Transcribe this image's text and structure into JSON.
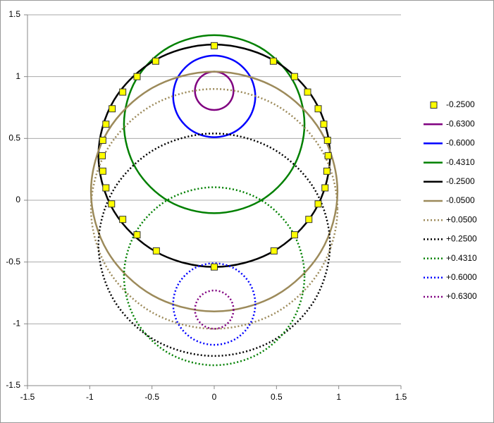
{
  "chart_data": {
    "type": "scatter",
    "xlim": [
      -1.5,
      1.5
    ],
    "ylim": [
      -1.5,
      1.5
    ],
    "xticks": [
      -1.5,
      -1,
      -0.5,
      0,
      0.5,
      1,
      1.5
    ],
    "yticks": [
      -1.5,
      -1,
      -0.5,
      0,
      0.5,
      1,
      1.5
    ],
    "grid": true,
    "legend": "right",
    "series": [
      {
        "name": "-0.2500",
        "color": "#ffff00",
        "mode": "markers",
        "marker": "square",
        "x": [
          0,
          0.475,
          0.645,
          0.75,
          0.835,
          0.88,
          0.91,
          0.915,
          0.905,
          0.89,
          0.835,
          0.76,
          0.645,
          0.48,
          0,
          -0.465,
          -0.62,
          -0.735,
          -0.825,
          -0.87,
          -0.895,
          -0.9,
          -0.895,
          -0.87,
          -0.82,
          -0.735,
          -0.62,
          -0.47
        ],
        "y": [
          1.25,
          1.125,
          1.0,
          0.875,
          0.74,
          0.615,
          0.485,
          0.36,
          0.235,
          0.1,
          -0.03,
          -0.155,
          -0.28,
          -0.41,
          -0.54,
          -0.41,
          -0.28,
          -0.155,
          -0.03,
          0.1,
          0.235,
          0.36,
          0.485,
          0.615,
          0.74,
          0.875,
          1.0,
          1.125
        ]
      },
      {
        "name": "-0.6300",
        "color": "#800080",
        "mode": "line",
        "dash": "solid",
        "x": [
          0.155,
          0.134,
          0.078,
          0,
          -0.078,
          -0.134,
          -0.155,
          -0.134,
          -0.078,
          0,
          0.078,
          0.134
        ],
        "y": [
          0.885,
          0.963,
          1.019,
          1.04,
          1.019,
          0.963,
          0.885,
          0.807,
          0.751,
          0.73,
          0.751,
          0.807
        ]
      },
      {
        "name": "-0.6000",
        "color": "#0000ff",
        "mode": "line",
        "dash": "solid",
        "x": [
          0.33,
          0.286,
          0.165,
          0,
          -0.165,
          -0.286,
          -0.33,
          -0.286,
          -0.165,
          0,
          0.165,
          0.286
        ],
        "y": [
          0.84,
          1.005,
          1.126,
          1.17,
          1.126,
          1.005,
          0.84,
          0.675,
          0.554,
          0.51,
          0.554,
          0.675
        ]
      },
      {
        "name": "-0.4310",
        "color": "#008000",
        "mode": "line",
        "dash": "solid",
        "x": [
          0.725,
          0.628,
          0.363,
          0,
          -0.363,
          -0.628,
          -0.725,
          -0.628,
          -0.363,
          0,
          0.363,
          0.628
        ],
        "y": [
          0.615,
          0.975,
          1.239,
          1.335,
          1.239,
          0.975,
          0.615,
          0.255,
          -0.009,
          -0.105,
          -0.009,
          0.255
        ]
      },
      {
        "name": "-0.2500",
        "color": "#000000",
        "mode": "line",
        "dash": "solid",
        "x": [
          0.93,
          0.805,
          0.465,
          0,
          -0.465,
          -0.805,
          -0.93,
          -0.805,
          -0.465,
          0,
          0.465,
          0.805
        ],
        "y": [
          0.36,
          0.81,
          1.139,
          1.26,
          1.139,
          0.81,
          0.36,
          -0.09,
          -0.419,
          -0.54,
          -0.419,
          -0.09
        ]
      },
      {
        "name": "-0.0500",
        "color": "#9c8a5a",
        "mode": "line",
        "dash": "solid",
        "x": [
          0.99,
          0.857,
          0.495,
          0,
          -0.495,
          -0.857,
          -0.99,
          -0.857,
          -0.495,
          0,
          0.495,
          0.857
        ],
        "y": [
          0.07,
          0.555,
          0.91,
          1.04,
          0.91,
          0.555,
          0.07,
          -0.415,
          -0.77,
          -0.9,
          -0.77,
          -0.415
        ]
      },
      {
        "name": "+0.0500",
        "color": "#9c8a5a",
        "mode": "line",
        "dash": "dotted",
        "x": [
          0.99,
          0.857,
          0.495,
          0,
          -0.495,
          -0.857,
          -0.99,
          -0.857,
          -0.495,
          0,
          0.495,
          0.857
        ],
        "y": [
          -0.07,
          -0.555,
          -0.91,
          -1.04,
          -0.91,
          -0.555,
          -0.07,
          0.415,
          0.77,
          0.9,
          0.77,
          0.415
        ]
      },
      {
        "name": "+0.2500",
        "color": "#000000",
        "mode": "line",
        "dash": "dotted",
        "x": [
          0.93,
          0.805,
          0.465,
          0,
          -0.465,
          -0.805,
          -0.93,
          -0.805,
          -0.465,
          0,
          0.465,
          0.805
        ],
        "y": [
          -0.36,
          -0.81,
          -1.139,
          -1.26,
          -1.139,
          -0.81,
          -0.36,
          0.09,
          0.419,
          0.54,
          0.419,
          0.09
        ]
      },
      {
        "name": "+0.4310",
        "color": "#008000",
        "mode": "line",
        "dash": "dotted",
        "x": [
          0.725,
          0.628,
          0.363,
          0,
          -0.363,
          -0.628,
          -0.725,
          -0.628,
          -0.363,
          0,
          0.363,
          0.628
        ],
        "y": [
          -0.615,
          -0.975,
          -1.239,
          -1.335,
          -1.239,
          -0.975,
          -0.615,
          -0.255,
          0.009,
          0.105,
          0.009,
          -0.255
        ]
      },
      {
        "name": "+0.6000",
        "color": "#0000ff",
        "mode": "line",
        "dash": "dotted",
        "x": [
          0.33,
          0.286,
          0.165,
          0,
          -0.165,
          -0.286,
          -0.33,
          -0.286,
          -0.165,
          0,
          0.165,
          0.286
        ],
        "y": [
          -0.84,
          -1.005,
          -1.126,
          -1.17,
          -1.126,
          -1.005,
          -0.84,
          -0.675,
          -0.554,
          -0.51,
          -0.554,
          -0.675
        ]
      },
      {
        "name": "+0.6300",
        "color": "#800080",
        "mode": "line",
        "dash": "dotted",
        "x": [
          0.155,
          0.134,
          0.078,
          0,
          -0.078,
          -0.134,
          -0.155,
          -0.134,
          -0.078,
          0,
          0.078,
          0.134
        ],
        "y": [
          -0.885,
          -0.963,
          -1.019,
          -1.04,
          -1.019,
          -0.963,
          -0.885,
          -0.807,
          -0.751,
          -0.73,
          -0.751,
          -0.807
        ]
      }
    ]
  }
}
